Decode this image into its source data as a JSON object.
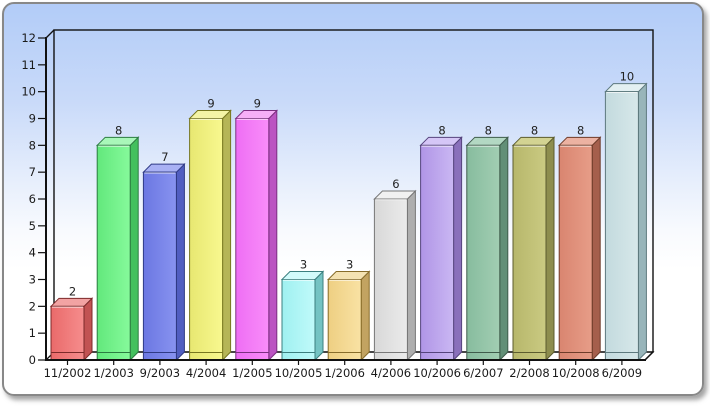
{
  "panel": {
    "border_color": "#888888",
    "background_gradient_top": "#b2ccf8",
    "background_gradient_bottom": "#ffffff"
  },
  "chart_data": {
    "type": "bar",
    "style": "3d-column",
    "title": "",
    "xlabel": "",
    "ylabel": "",
    "categories": [
      "11/2002",
      "1/2003",
      "9/2003",
      "4/2004",
      "1/2005",
      "10/2005",
      "1/2006",
      "4/2006",
      "10/2006",
      "6/2007",
      "2/2008",
      "10/2008",
      "6/2009"
    ],
    "values": [
      2,
      8,
      7,
      9,
      9,
      3,
      3,
      6,
      8,
      8,
      8,
      8,
      10
    ],
    "value_labels_shown": true,
    "ylim": [
      0,
      12
    ],
    "ytick_step": 1,
    "grid": false,
    "legend": "none",
    "axis_color": "#111111",
    "floor_fill": "#ffffff",
    "bar_colors": [
      {
        "name": "salmon-red",
        "front_dark": "#e96a6a",
        "front_light": "#f68d8d",
        "side": "#c25353",
        "top": "#f2a3a3",
        "outline": "#7c2a2a"
      },
      {
        "name": "green",
        "front_dark": "#62e87c",
        "front_light": "#86fa9b",
        "side": "#43c05e",
        "top": "#a9f7b9",
        "outline": "#2c7c42"
      },
      {
        "name": "blue",
        "front_dark": "#6b77e2",
        "front_light": "#8893f0",
        "side": "#515ec1",
        "top": "#a9b1f4",
        "outline": "#2f3a85"
      },
      {
        "name": "yellow",
        "front_dark": "#e7e771",
        "front_light": "#f8f88f",
        "side": "#b5b557",
        "top": "#f4f4a6",
        "outline": "#77771f"
      },
      {
        "name": "magenta",
        "front_dark": "#ee6ef4",
        "front_light": "#f98df9",
        "side": "#bb54c2",
        "top": "#f6aff7",
        "outline": "#7c2f81"
      },
      {
        "name": "cyan",
        "front_dark": "#9ff0f0",
        "front_light": "#c0fafa",
        "side": "#74c3c3",
        "top": "#d2fbfb",
        "outline": "#3b7f7f"
      },
      {
        "name": "wheat",
        "front_dark": "#eecf82",
        "front_light": "#f9e2a4",
        "side": "#c2a361",
        "top": "#f4e2b2",
        "outline": "#876c2a"
      },
      {
        "name": "white-gray",
        "front_dark": "#d8d8d8",
        "front_light": "#ebebeb",
        "side": "#aeaeae",
        "top": "#f1f1f1",
        "outline": "#777777"
      },
      {
        "name": "lavender",
        "front_dark": "#b095e6",
        "front_light": "#cab7f3",
        "side": "#8a70bb",
        "top": "#d5c6f6",
        "outline": "#55447d"
      },
      {
        "name": "sea-green",
        "front_dark": "#87bc9e",
        "front_light": "#a2ceb3",
        "side": "#628f77",
        "top": "#b3d8c3",
        "outline": "#3f5c4c"
      },
      {
        "name": "olive",
        "front_dark": "#b7b76b",
        "front_light": "#caca82",
        "side": "#8d8d4e",
        "top": "#d3d392",
        "outline": "#5c5c2e"
      },
      {
        "name": "terracotta",
        "front_dark": "#d98570",
        "front_light": "#e79d88",
        "side": "#a55f4c",
        "top": "#ecb2a2",
        "outline": "#6e3c2a"
      },
      {
        "name": "light-steel",
        "front_dark": "#c3dade",
        "front_light": "#d7e8ea",
        "side": "#98b5ba",
        "top": "#e3f0f2",
        "outline": "#5d797e"
      }
    ]
  }
}
